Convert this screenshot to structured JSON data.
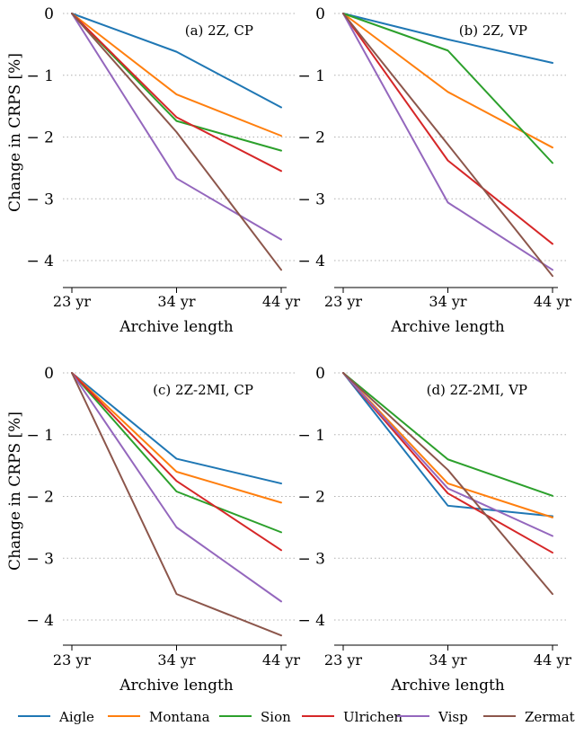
{
  "chart_data": [
    {
      "type": "line",
      "panel_label": "(a) 2Z, CP",
      "ylabel": "Change in CRPS [%]",
      "xlabel": "Archive length",
      "x": [
        "23 yr",
        "34 yr",
        "44 yr"
      ],
      "ylim": [
        -4.4,
        0
      ],
      "yticks": [
        0,
        -1,
        -2,
        -3,
        -4
      ],
      "ytick_labels": [
        "0",
        "− 1",
        "− 2",
        "− 3",
        "− 4"
      ],
      "grid": "y dotted",
      "series": [
        {
          "name": "Aigle",
          "values": [
            0,
            -0.62,
            -1.52
          ]
        },
        {
          "name": "Montana",
          "values": [
            0,
            -1.31,
            -1.98
          ]
        },
        {
          "name": "Sion",
          "values": [
            0,
            -1.74,
            -2.22
          ]
        },
        {
          "name": "Ulrichen",
          "values": [
            0,
            -1.68,
            -2.55
          ]
        },
        {
          "name": "Visp",
          "values": [
            0,
            -2.67,
            -3.66
          ]
        },
        {
          "name": "Zermatt",
          "values": [
            0,
            -1.92,
            -4.15
          ]
        }
      ]
    },
    {
      "type": "line",
      "panel_label": "(b) 2Z, VP",
      "ylabel": "",
      "xlabel": "Archive length",
      "x": [
        "23 yr",
        "34 yr",
        "44 yr"
      ],
      "ylim": [
        -4.4,
        0
      ],
      "yticks": [
        0,
        -1,
        -2,
        -3,
        -4
      ],
      "ytick_labels": [
        "0",
        "− 1",
        "− 2",
        "− 3",
        "− 4"
      ],
      "grid": "y dotted",
      "series": [
        {
          "name": "Aigle",
          "values": [
            0,
            -0.42,
            -0.8
          ]
        },
        {
          "name": "Montana",
          "values": [
            0,
            -1.27,
            -2.17
          ]
        },
        {
          "name": "Sion",
          "values": [
            0,
            -0.6,
            -2.42
          ]
        },
        {
          "name": "Ulrichen",
          "values": [
            0,
            -2.38,
            -3.73
          ]
        },
        {
          "name": "Visp",
          "values": [
            0,
            -3.06,
            -4.15
          ]
        },
        {
          "name": "Zermatt",
          "values": [
            0,
            -2.12,
            -4.25
          ]
        }
      ]
    },
    {
      "type": "line",
      "panel_label": "(c) 2Z-2MI, CP",
      "ylabel": "Change in CRPS [%]",
      "xlabel": "Archive length",
      "x": [
        "23 yr",
        "34 yr",
        "44 yr"
      ],
      "ylim": [
        -4.4,
        0
      ],
      "yticks": [
        0,
        -1,
        -2,
        -3,
        -4
      ],
      "ytick_labels": [
        "0",
        "− 1",
        "− 2",
        "− 3",
        "− 4"
      ],
      "grid": "y dotted",
      "series": [
        {
          "name": "Aigle",
          "values": [
            0,
            -1.39,
            -1.79
          ]
        },
        {
          "name": "Montana",
          "values": [
            0,
            -1.6,
            -2.1
          ]
        },
        {
          "name": "Sion",
          "values": [
            0,
            -1.92,
            -2.58
          ]
        },
        {
          "name": "Ulrichen",
          "values": [
            0,
            -1.75,
            -2.87
          ]
        },
        {
          "name": "Visp",
          "values": [
            0,
            -2.5,
            -3.7
          ]
        },
        {
          "name": "Zermatt",
          "values": [
            0,
            -3.58,
            -4.25
          ]
        }
      ]
    },
    {
      "type": "line",
      "panel_label": "(d) 2Z-2MI, VP",
      "ylabel": "",
      "xlabel": "Archive length",
      "x": [
        "23 yr",
        "34 yr",
        "44 yr"
      ],
      "ylim": [
        -4.4,
        0
      ],
      "yticks": [
        0,
        -1,
        -2,
        -3,
        -4
      ],
      "ytick_labels": [
        "0",
        "− 1",
        "− 2",
        "− 3",
        "− 4"
      ],
      "grid": "y dotted",
      "series": [
        {
          "name": "Aigle",
          "values": [
            0,
            -2.15,
            -2.32
          ]
        },
        {
          "name": "Montana",
          "values": [
            0,
            -1.79,
            -2.34
          ]
        },
        {
          "name": "Sion",
          "values": [
            0,
            -1.4,
            -1.99
          ]
        },
        {
          "name": "Ulrichen",
          "values": [
            0,
            -1.95,
            -2.91
          ]
        },
        {
          "name": "Visp",
          "values": [
            0,
            -1.87,
            -2.64
          ]
        },
        {
          "name": "Zermatt",
          "values": [
            0,
            -1.57,
            -3.58
          ]
        }
      ]
    }
  ],
  "legend": {
    "placement": "bottom",
    "items": [
      {
        "name": "Aigle",
        "color": "#1f77b4"
      },
      {
        "name": "Montana",
        "color": "#ff7f0e"
      },
      {
        "name": "Sion",
        "color": "#2ca02c"
      },
      {
        "name": "Ulrichen",
        "color": "#d62728"
      },
      {
        "name": "Visp",
        "color": "#9467bd"
      },
      {
        "name": "Zermatt",
        "color": "#8c564b"
      }
    ]
  }
}
